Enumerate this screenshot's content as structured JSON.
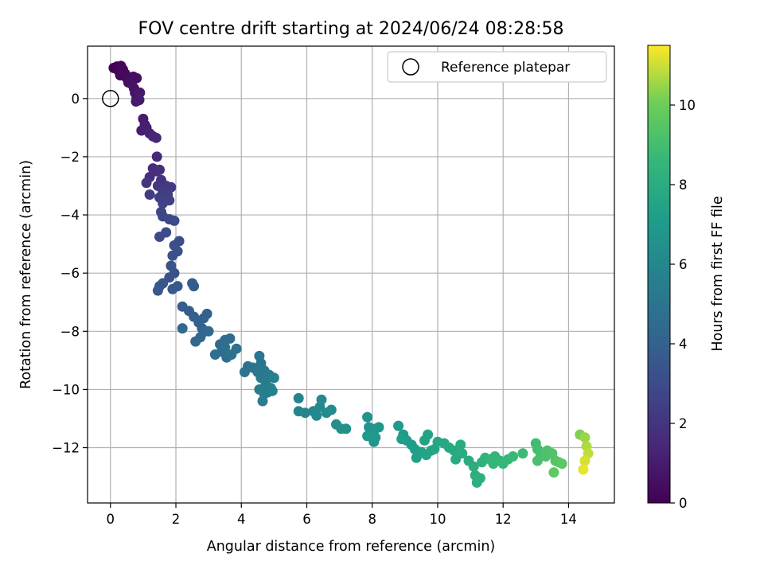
{
  "chart_data": {
    "type": "scatter",
    "title": "FOV centre drift starting at 2024/06/24 08:28:58",
    "xlabel": "Angular distance from reference (arcmin)",
    "ylabel": "Rotation from reference (arcmin)",
    "xlim": [
      -0.7,
      15.4
    ],
    "ylim": [
      -13.9,
      1.8
    ],
    "xticks": [
      "0",
      "2",
      "4",
      "6",
      "8",
      "10",
      "12",
      "14"
    ],
    "yticks": [
      "0",
      "−2",
      "−4",
      "−6",
      "−8",
      "−10",
      "−12"
    ],
    "grid": true,
    "legend": {
      "placement": "top-right",
      "entries": [
        "Reference platepar"
      ]
    },
    "reference_point": {
      "label": "Reference platepar",
      "x": 0,
      "y": 0,
      "marker": "open-circle"
    },
    "colorbar": {
      "label": "Hours from first FF file",
      "colormap": "viridis",
      "range": [
        0,
        11.5
      ],
      "ticks": [
        "0",
        "2",
        "4",
        "6",
        "8",
        "10"
      ]
    },
    "points_columns": [
      "x",
      "y",
      "hours"
    ],
    "points": [
      [
        0.1,
        1.05,
        0.0
      ],
      [
        0.2,
        1.1,
        0.05
      ],
      [
        0.32,
        1.12,
        0.1
      ],
      [
        0.25,
        0.95,
        0.15
      ],
      [
        0.3,
        0.8,
        0.2
      ],
      [
        0.38,
        1.0,
        0.25
      ],
      [
        0.45,
        0.85,
        0.3
      ],
      [
        0.5,
        0.7,
        0.35
      ],
      [
        0.55,
        0.55,
        0.4
      ],
      [
        0.6,
        0.65,
        0.45
      ],
      [
        0.7,
        0.75,
        0.5
      ],
      [
        0.8,
        0.7,
        0.55
      ],
      [
        0.65,
        0.5,
        0.6
      ],
      [
        0.72,
        0.35,
        0.65
      ],
      [
        0.75,
        0.2,
        0.7
      ],
      [
        0.8,
        0.05,
        0.75
      ],
      [
        0.85,
        0.0,
        0.8
      ],
      [
        0.78,
        -0.1,
        0.85
      ],
      [
        0.9,
        0.2,
        0.9
      ],
      [
        0.88,
        -0.05,
        0.95
      ],
      [
        1.0,
        -0.7,
        1.0
      ],
      [
        1.05,
        -0.9,
        1.05
      ],
      [
        0.95,
        -1.1,
        1.1
      ],
      [
        1.1,
        -1.0,
        1.15
      ],
      [
        1.2,
        -1.2,
        1.2
      ],
      [
        1.3,
        -1.3,
        1.3
      ],
      [
        1.4,
        -1.35,
        1.4
      ],
      [
        1.42,
        -2.0,
        1.5
      ],
      [
        1.3,
        -2.4,
        1.6
      ],
      [
        1.4,
        -2.5,
        1.7
      ],
      [
        1.5,
        -2.45,
        1.75
      ],
      [
        1.2,
        -2.7,
        1.8
      ],
      [
        1.55,
        -2.8,
        1.9
      ],
      [
        1.1,
        -2.9,
        2.0
      ],
      [
        1.45,
        -3.0,
        2.1
      ],
      [
        1.7,
        -3.0,
        2.15
      ],
      [
        1.85,
        -3.05,
        2.2
      ],
      [
        1.6,
        -3.2,
        2.3
      ],
      [
        1.2,
        -3.3,
        2.35
      ],
      [
        1.5,
        -3.4,
        2.4
      ],
      [
        1.75,
        -3.3,
        2.45
      ],
      [
        1.8,
        -3.5,
        2.5
      ],
      [
        1.6,
        -3.6,
        2.6
      ],
      [
        1.55,
        -3.9,
        2.7
      ],
      [
        1.6,
        -4.05,
        2.75
      ],
      [
        1.8,
        -4.15,
        2.8
      ],
      [
        1.95,
        -4.2,
        2.9
      ],
      [
        1.7,
        -4.6,
        2.95
      ],
      [
        1.5,
        -4.75,
        3.0
      ],
      [
        2.1,
        -4.9,
        3.05
      ],
      [
        1.95,
        -5.05,
        3.1
      ],
      [
        2.05,
        -5.25,
        3.2
      ],
      [
        1.9,
        -5.4,
        3.25
      ],
      [
        1.85,
        -5.75,
        3.3
      ],
      [
        1.95,
        -6.0,
        3.35
      ],
      [
        1.8,
        -6.15,
        3.4
      ],
      [
        1.6,
        -6.35,
        3.45
      ],
      [
        1.5,
        -6.45,
        3.5
      ],
      [
        1.45,
        -6.6,
        3.55
      ],
      [
        1.9,
        -6.55,
        3.6
      ],
      [
        2.05,
        -6.45,
        3.65
      ],
      [
        2.5,
        -6.35,
        3.7
      ],
      [
        2.55,
        -6.45,
        3.75
      ],
      [
        2.2,
        -7.15,
        3.8
      ],
      [
        2.4,
        -7.3,
        3.85
      ],
      [
        2.55,
        -7.5,
        3.9
      ],
      [
        2.7,
        -7.7,
        3.95
      ],
      [
        2.85,
        -7.55,
        4.0
      ],
      [
        2.95,
        -7.4,
        4.05
      ],
      [
        2.8,
        -7.9,
        4.1
      ],
      [
        2.9,
        -8.0,
        4.15
      ],
      [
        2.75,
        -8.2,
        4.2
      ],
      [
        2.6,
        -8.35,
        4.25
      ],
      [
        2.2,
        -7.9,
        4.3
      ],
      [
        3.0,
        -8.0,
        4.35
      ],
      [
        3.35,
        -8.45,
        4.4
      ],
      [
        3.5,
        -8.3,
        4.5
      ],
      [
        3.65,
        -8.25,
        4.55
      ],
      [
        3.4,
        -8.7,
        4.6
      ],
      [
        3.2,
        -8.8,
        4.65
      ],
      [
        3.55,
        -8.9,
        4.7
      ],
      [
        3.7,
        -8.8,
        4.75
      ],
      [
        3.5,
        -8.55,
        4.8
      ],
      [
        3.85,
        -8.6,
        4.85
      ],
      [
        4.1,
        -9.4,
        4.9
      ],
      [
        4.2,
        -9.2,
        4.95
      ],
      [
        4.35,
        -9.25,
        5.0
      ],
      [
        4.55,
        -8.85,
        5.05
      ],
      [
        4.6,
        -9.1,
        5.1
      ],
      [
        4.5,
        -9.4,
        5.15
      ],
      [
        4.7,
        -9.35,
        5.2
      ],
      [
        4.85,
        -9.5,
        5.25
      ],
      [
        4.6,
        -9.6,
        5.3
      ],
      [
        4.75,
        -9.8,
        5.35
      ],
      [
        4.55,
        -10.0,
        5.4
      ],
      [
        4.7,
        -10.15,
        5.45
      ],
      [
        4.8,
        -10.1,
        5.5
      ],
      [
        4.65,
        -10.4,
        5.55
      ],
      [
        4.9,
        -9.95,
        5.6
      ],
      [
        5.0,
        -9.6,
        5.65
      ],
      [
        4.95,
        -10.05,
        5.7
      ],
      [
        5.75,
        -10.3,
        5.8
      ],
      [
        5.75,
        -10.75,
        5.9
      ],
      [
        5.95,
        -10.8,
        5.95
      ],
      [
        6.2,
        -10.75,
        6.0
      ],
      [
        6.4,
        -10.6,
        6.05
      ],
      [
        6.3,
        -10.9,
        6.1
      ],
      [
        6.45,
        -10.35,
        6.15
      ],
      [
        6.6,
        -10.8,
        6.2
      ],
      [
        6.75,
        -10.7,
        6.25
      ],
      [
        6.9,
        -11.2,
        6.35
      ],
      [
        7.05,
        -11.35,
        6.45
      ],
      [
        7.2,
        -11.35,
        6.5
      ],
      [
        7.85,
        -10.95,
        6.6
      ],
      [
        7.9,
        -11.3,
        6.65
      ],
      [
        7.95,
        -11.55,
        6.7
      ],
      [
        8.05,
        -11.8,
        6.75
      ],
      [
        8.1,
        -11.35,
        6.8
      ],
      [
        8.2,
        -11.3,
        6.85
      ],
      [
        7.85,
        -11.6,
        6.9
      ],
      [
        8.1,
        -11.65,
        6.95
      ],
      [
        8.8,
        -11.25,
        7.0
      ],
      [
        8.95,
        -11.55,
        7.05
      ],
      [
        9.05,
        -11.75,
        7.1
      ],
      [
        9.2,
        -11.9,
        7.15
      ],
      [
        9.3,
        -12.05,
        7.2
      ],
      [
        8.9,
        -11.7,
        7.25
      ],
      [
        9.35,
        -12.35,
        7.3
      ],
      [
        9.5,
        -12.15,
        7.35
      ],
      [
        9.6,
        -11.75,
        7.4
      ],
      [
        9.7,
        -11.55,
        7.45
      ],
      [
        9.8,
        -12.1,
        7.5
      ],
      [
        9.65,
        -12.25,
        7.55
      ],
      [
        9.9,
        -12.05,
        7.6
      ],
      [
        10.0,
        -11.8,
        7.65
      ],
      [
        10.2,
        -11.85,
        7.7
      ],
      [
        10.35,
        -12.0,
        7.75
      ],
      [
        10.5,
        -12.1,
        7.8
      ],
      [
        10.55,
        -12.4,
        7.85
      ],
      [
        10.7,
        -11.9,
        7.9
      ],
      [
        10.75,
        -12.2,
        7.95
      ],
      [
        10.95,
        -12.45,
        8.0
      ],
      [
        11.1,
        -12.65,
        8.05
      ],
      [
        11.15,
        -12.95,
        8.1
      ],
      [
        11.2,
        -13.2,
        8.15
      ],
      [
        11.3,
        -13.05,
        8.2
      ],
      [
        11.35,
        -12.5,
        8.25
      ],
      [
        11.45,
        -12.35,
        8.35
      ],
      [
        11.6,
        -12.4,
        8.4
      ],
      [
        11.7,
        -12.55,
        8.45
      ],
      [
        11.75,
        -12.3,
        8.5
      ],
      [
        11.9,
        -12.45,
        8.55
      ],
      [
        12.0,
        -12.55,
        8.6
      ],
      [
        12.15,
        -12.4,
        8.65
      ],
      [
        12.3,
        -12.3,
        8.7
      ],
      [
        12.6,
        -12.2,
        8.8
      ],
      [
        13.0,
        -11.85,
        8.9
      ],
      [
        13.05,
        -12.05,
        9.0
      ],
      [
        13.15,
        -12.25,
        9.1
      ],
      [
        13.05,
        -12.45,
        9.15
      ],
      [
        13.3,
        -12.3,
        9.2
      ],
      [
        13.35,
        -12.1,
        9.25
      ],
      [
        13.5,
        -12.2,
        9.3
      ],
      [
        13.6,
        -12.45,
        9.4
      ],
      [
        13.7,
        -12.5,
        9.5
      ],
      [
        13.8,
        -12.55,
        9.6
      ],
      [
        13.55,
        -12.85,
        9.7
      ],
      [
        14.35,
        -11.55,
        10.2
      ],
      [
        14.5,
        -11.65,
        10.5
      ],
      [
        14.55,
        -11.95,
        10.7
      ],
      [
        14.6,
        -12.2,
        10.9
      ],
      [
        14.5,
        -12.45,
        11.1
      ],
      [
        14.45,
        -12.75,
        11.3
      ]
    ]
  }
}
